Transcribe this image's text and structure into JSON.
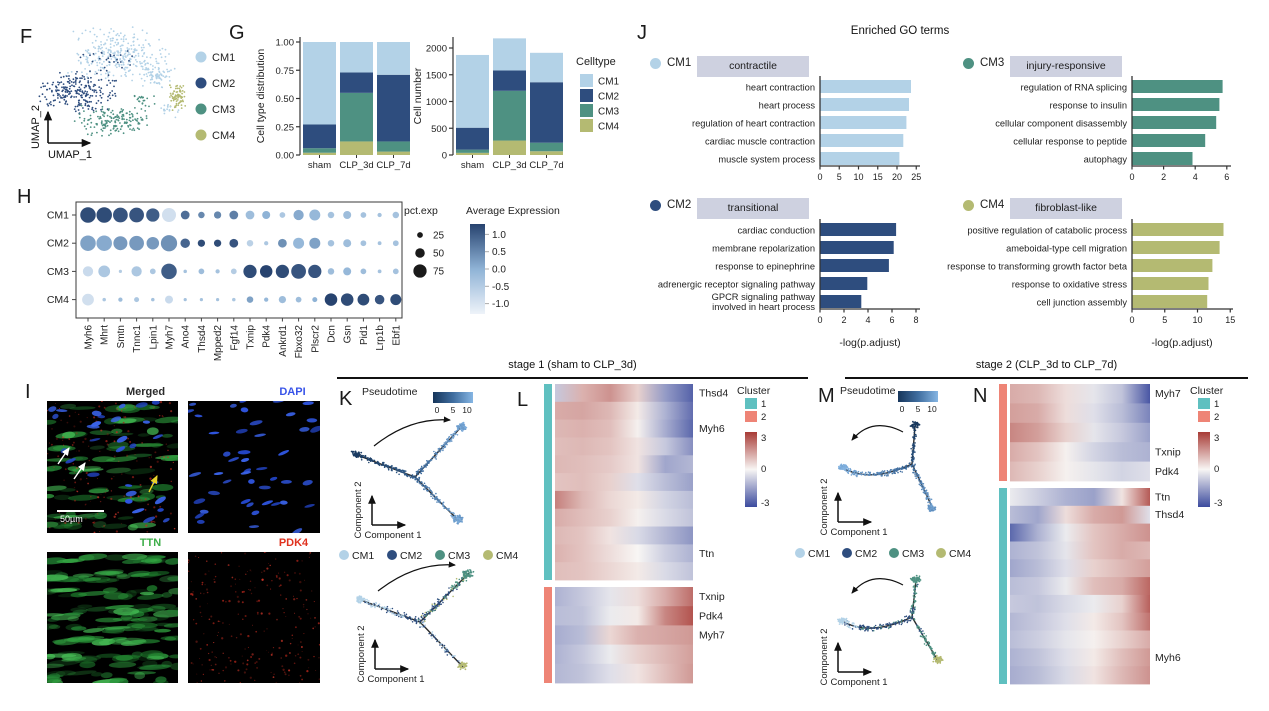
{
  "panels": {
    "F": {
      "label": "F",
      "xlabel": "UMAP_1",
      "ylabel": "UMAP_2",
      "legend": [
        "CM1",
        "CM2",
        "CM3",
        "CM4"
      ]
    },
    "G": {
      "label": "G"
    },
    "H": {
      "label": "H"
    },
    "I": {
      "label": "I",
      "images": [
        "Merged",
        "DAPI",
        "TTN",
        "PDK4"
      ],
      "scale_bar": "50µm"
    },
    "J": {
      "label": "J",
      "title": "Enriched GO terms",
      "xlabel": "-log(p.adjust)"
    },
    "K": {
      "label": "K",
      "pseudotime_label": "Pseudotime",
      "pseudotime_ticks": [
        0,
        5,
        10
      ],
      "xlabel": "Component 1",
      "ylabel": "Component 2",
      "legend": [
        "CM1",
        "CM2",
        "CM3",
        "CM4"
      ]
    },
    "L": {
      "label": "L",
      "cluster_legend_title": "Cluster"
    },
    "M": {
      "label": "M",
      "pseudotime_label": "Pseudotime",
      "pseudotime_ticks": [
        0,
        5,
        10
      ],
      "xlabel": "Component 1",
      "ylabel": "Component 2",
      "legend": [
        "CM1",
        "CM2",
        "CM3",
        "CM4"
      ]
    },
    "N": {
      "label": "N",
      "cluster_legend_title": "Cluster"
    }
  },
  "stage_headers": [
    "stage 1 (sham to CLP_3d)",
    "stage 2 (CLP_3d to CLP_7d)"
  ],
  "colors": {
    "cm1": "#b3d2e7",
    "cm2": "#2e4d7e",
    "cm3": "#4e9182",
    "cm4": "#b4ba72",
    "cluster1": "#5fc0c0",
    "cluster2": "#ee8476",
    "heat_pos": "#a83b36",
    "heat_zero": "#f8f6f4",
    "heat_neg": "#3c4b9e",
    "pseudotime_dark": "#16355a",
    "pseudotime_mid": "#3f6d9f",
    "pseudotime_light": "#85b5e3",
    "go_chip_bg": "#ced1e0",
    "dapi_blue": "#3753e8",
    "ttn_green": "#3fae4a",
    "pdk4_red": "#e0321f",
    "merged_gray": "#2b2b2b"
  },
  "chart_data": [
    {
      "id": "celltype-distribution",
      "type": "bar",
      "stacked": true,
      "ylabel": "Cell type distribution",
      "categories": [
        "sham",
        "CLP_3d",
        "CLP_7d"
      ],
      "series": [
        {
          "name": "CM4",
          "values": [
            0.02,
            0.12,
            0.03
          ]
        },
        {
          "name": "CM3",
          "values": [
            0.04,
            0.43,
            0.09
          ]
        },
        {
          "name": "CM2",
          "values": [
            0.21,
            0.18,
            0.59
          ]
        },
        {
          "name": "CM1",
          "values": [
            0.73,
            0.27,
            0.29
          ]
        }
      ],
      "ylim": [
        0,
        1
      ],
      "yticks": [
        0,
        0.25,
        0.5,
        0.75,
        1
      ]
    },
    {
      "id": "cell-number",
      "type": "bar",
      "stacked": true,
      "ylabel": "Cell number",
      "legend_title": "Celltype",
      "legend": [
        "CM1",
        "CM2",
        "CM3",
        "CM4"
      ],
      "categories": [
        "sham",
        "CLP_3d",
        "CLP_7d"
      ],
      "series": [
        {
          "name": "CM4",
          "values": [
            40,
            270,
            70
          ]
        },
        {
          "name": "CM3",
          "values": [
            60,
            930,
            160
          ]
        },
        {
          "name": "CM2",
          "values": [
            410,
            380,
            1130
          ]
        },
        {
          "name": "CM1",
          "values": [
            1360,
            600,
            550
          ]
        }
      ],
      "ylim": [
        0,
        2200
      ],
      "yticks": [
        0,
        500,
        1000,
        1500,
        2000
      ]
    },
    {
      "id": "marker-dotplot",
      "type": "heatmap",
      "subtype": "dotplot",
      "genes": [
        "Myh6",
        "Mhrt",
        "Smtn",
        "Tnnc1",
        "Lpin1",
        "Myh7",
        "Ano4",
        "Thsd4",
        "Mpped2",
        "Fgf14",
        "Txnip",
        "Pdk4",
        "Ankrd1",
        "Fbxo32",
        "Plscr2",
        "Dcn",
        "Gsn",
        "Pid1",
        "Lrp1b",
        "Ebf1"
      ],
      "rows": [
        "CM1",
        "CM2",
        "CM3",
        "CM4"
      ],
      "pct": [
        [
          90,
          90,
          85,
          85,
          75,
          80,
          45,
          30,
          35,
          45,
          45,
          40,
          25,
          55,
          60,
          30,
          40,
          25,
          15,
          30
        ],
        [
          90,
          90,
          80,
          85,
          70,
          95,
          50,
          35,
          35,
          45,
          30,
          15,
          45,
          60,
          60,
          30,
          40,
          25,
          12,
          25
        ],
        [
          55,
          65,
          8,
          55,
          25,
          90,
          10,
          25,
          15,
          25,
          75,
          70,
          75,
          85,
          75,
          30,
          40,
          25,
          12,
          25
        ],
        [
          65,
          10,
          15,
          20,
          10,
          40,
          8,
          8,
          8,
          10,
          30,
          15,
          35,
          25,
          20,
          70,
          70,
          65,
          50,
          60
        ]
      ],
      "avg_exp": [
        [
          1.2,
          1.2,
          1.1,
          1.1,
          1.0,
          -0.9,
          0.8,
          0.5,
          0.5,
          0.6,
          -0.2,
          0.0,
          -0.4,
          0.1,
          -0.1,
          -0.3,
          -0.2,
          -0.3,
          -0.3,
          -0.3
        ],
        [
          0.2,
          0.1,
          0.3,
          0.3,
          0.3,
          0.4,
          0.9,
          1.2,
          1.2,
          1.1,
          -0.6,
          -0.4,
          0.4,
          -0.1,
          0.2,
          -0.3,
          -0.2,
          -0.3,
          -0.3,
          -0.3
        ],
        [
          -0.8,
          -0.4,
          -0.5,
          -0.4,
          -0.4,
          1.0,
          -0.3,
          -0.2,
          -0.3,
          -0.5,
          1.2,
          1.3,
          1.2,
          1.1,
          1.1,
          -0.2,
          -0.1,
          -0.2,
          -0.3,
          -0.3
        ],
        [
          -0.9,
          -0.4,
          -0.2,
          -0.4,
          -0.3,
          -0.8,
          -0.3,
          -0.3,
          -0.3,
          -0.4,
          0.2,
          -0.1,
          -0.2,
          -0.2,
          0.0,
          1.3,
          1.2,
          1.2,
          1.1,
          1.2
        ]
      ],
      "size_legend": {
        "title": "pct.exp",
        "values": [
          25,
          50,
          75
        ]
      },
      "color_legend": {
        "title": "Average Expression",
        "ticks": [
          1.0,
          0.5,
          0.0,
          -0.5,
          -1.0
        ],
        "range": [
          -1.3,
          1.3
        ]
      }
    },
    {
      "id": "go-cm1",
      "type": "bar",
      "orientation": "horizontal",
      "cluster": "CM1",
      "tag": "contractile",
      "categories": [
        "heart contraction",
        "heart process",
        "regulation of heart contraction",
        "cardiac muscle contraction",
        "muscle system process"
      ],
      "values": [
        23.5,
        23,
        22.3,
        21.5,
        20.5
      ],
      "xticks": [
        0,
        5,
        10,
        15,
        20,
        25
      ],
      "xlabel": "-log(p.adjust)"
    },
    {
      "id": "go-cm2",
      "type": "bar",
      "orientation": "horizontal",
      "cluster": "CM2",
      "tag": "transitional",
      "categories": [
        "cardiac conduction",
        "membrane repolarization",
        "response to epinephrine",
        "adrenergic receptor signaling pathway",
        "GPCR signaling pathway\ninvolved in heart process"
      ],
      "values": [
        6.3,
        6.1,
        5.7,
        3.9,
        3.4
      ],
      "xticks": [
        0,
        2,
        4,
        6,
        8
      ],
      "xlabel": "-log(p.adjust)"
    },
    {
      "id": "go-cm3",
      "type": "bar",
      "orientation": "horizontal",
      "cluster": "CM3",
      "tag": "injury-responsive",
      "categories": [
        "regulation of RNA splicing",
        "response to insulin",
        "cellular component disassembly",
        "cellular response to peptide",
        "autophagy"
      ],
      "values": [
        5.7,
        5.5,
        5.3,
        4.6,
        3.8
      ],
      "xticks": [
        0,
        2,
        4,
        6
      ],
      "xlabel": "-log(p.adjust)"
    },
    {
      "id": "go-cm4",
      "type": "bar",
      "orientation": "horizontal",
      "cluster": "CM4",
      "tag": "fibroblast-like",
      "categories": [
        "positive regulation of catabolic process",
        "ameboidal-type cell migration",
        "response to transforming growth factor beta",
        "response to oxidative stress",
        "cell junction assembly"
      ],
      "values": [
        13.9,
        13.3,
        12.2,
        11.6,
        11.4
      ],
      "xticks": [
        0,
        5,
        10,
        15
      ],
      "xlabel": "-log(p.adjust)"
    },
    {
      "id": "stage1-gene-heatmap",
      "type": "heatmap",
      "value_range": [
        -3,
        3
      ],
      "colorbar_ticks": [
        3,
        0,
        -3
      ],
      "cluster_legend": {
        "title": "Cluster",
        "ids": [
          1,
          2
        ]
      },
      "sections": [
        {
          "cluster": 1,
          "gene_labels": {
            "0": "Thsd4",
            "2": "Myh6",
            "9": "Ttn"
          },
          "rows": [
            [
              -0.8,
              1.1,
              1.6,
              0.6,
              -1.6,
              -2.6
            ],
            [
              1.2,
              1.3,
              1.0,
              0.2,
              -1.2,
              -2.4
            ],
            [
              1.0,
              1.1,
              0.9,
              0.1,
              -1.3,
              -2.5
            ],
            [
              0.9,
              1.0,
              0.8,
              0.3,
              -0.8,
              -1.8
            ],
            [
              1.0,
              0.9,
              0.7,
              0.3,
              -1.4,
              -1.1
            ],
            [
              0.8,
              0.9,
              0.6,
              -0.4,
              -1.0,
              -1.5
            ],
            [
              1.9,
              1.0,
              0.5,
              0.2,
              -0.6,
              -1.0
            ],
            [
              1.2,
              0.9,
              0.6,
              0.1,
              -0.5,
              -0.9
            ],
            [
              1.0,
              0.8,
              0.3,
              -0.5,
              -1.1,
              -1.7
            ],
            [
              1.1,
              0.8,
              0.4,
              0.0,
              -0.7,
              -1.2
            ],
            [
              0.9,
              0.8,
              0.5,
              0.2,
              -0.5,
              -0.9
            ]
          ]
        },
        {
          "cluster": 2,
          "gene_labels": {
            "0": "Txnip",
            "1": "Pdk4",
            "2": "Myh7"
          },
          "rows": [
            [
              -1.2,
              -0.8,
              -0.3,
              0.4,
              1.2,
              2.2
            ],
            [
              -1.0,
              -0.9,
              -0.2,
              0.2,
              1.8,
              2.6
            ],
            [
              -1.3,
              -1.0,
              0.5,
              1.1,
              1.3,
              1.5
            ],
            [
              -1.2,
              -0.8,
              -0.2,
              0.6,
              1.0,
              1.4
            ],
            [
              -1.1,
              -0.9,
              -0.4,
              0.3,
              0.9,
              1.5
            ]
          ]
        }
      ]
    },
    {
      "id": "stage2-gene-heatmap",
      "type": "heatmap",
      "value_range": [
        -3,
        3
      ],
      "colorbar_ticks": [
        3,
        0,
        -3
      ],
      "cluster_legend": {
        "title": "Cluster",
        "ids": [
          1,
          2
        ]
      },
      "sections": [
        {
          "cluster": 2,
          "gene_labels": {
            "0": "Myh7",
            "3": "Txnip",
            "4": "Pdk4"
          },
          "rows": [
            [
              1.2,
              1.0,
              0.4,
              -0.3,
              -0.9,
              -2.8
            ],
            [
              1.4,
              1.2,
              0.4,
              -0.4,
              -1.0,
              -2.0
            ],
            [
              1.8,
              1.4,
              0.6,
              -0.3,
              -0.8,
              -1.5
            ],
            [
              1.2,
              0.8,
              0.1,
              -0.6,
              -1.0,
              -1.2
            ],
            [
              1.0,
              0.6,
              0.1,
              -0.3,
              -0.6,
              -0.4
            ]
          ]
        },
        {
          "cluster": 1,
          "gene_labels": {
            "0": "Ttn",
            "1": "Thsd4",
            "9": "Myh6"
          },
          "rows": [
            [
              -0.2,
              -0.7,
              -1.2,
              -1.5,
              0.3,
              2.5
            ],
            [
              -1.0,
              -1.4,
              0.4,
              1.2,
              1.5,
              -0.4
            ],
            [
              -2.5,
              -1.2,
              -0.2,
              0.8,
              1.2,
              1.6
            ],
            [
              -1.2,
              -0.9,
              -0.3,
              0.8,
              1.2,
              1.0
            ],
            [
              -1.4,
              -1.0,
              -0.4,
              0.6,
              1.0,
              1.4
            ],
            [
              -1.0,
              -0.8,
              -0.2,
              0.9,
              1.2,
              2.3
            ],
            [
              -0.8,
              -0.9,
              -0.5,
              -0.2,
              0.6,
              2.4
            ],
            [
              -1.1,
              -0.8,
              -0.4,
              0.2,
              0.8,
              2.1
            ],
            [
              -1.0,
              -0.7,
              -0.3,
              0.1,
              0.6,
              1.2
            ],
            [
              -1.2,
              -0.9,
              -0.4,
              0.2,
              0.9,
              1.5
            ],
            [
              -1.3,
              -1.0,
              -0.5,
              0.3,
              1.0,
              1.6
            ]
          ]
        }
      ]
    },
    {
      "id": "stage1-trajectory",
      "type": "scatter",
      "title": "stage 1 (sham to CLP_3d)",
      "xlabel": "Component 1",
      "ylabel": "Component 2",
      "colorbar": {
        "title": "Pseudotime",
        "ticks": [
          0,
          5,
          10
        ]
      },
      "legend": [
        "CM1",
        "CM2",
        "CM3",
        "CM4"
      ],
      "branches": [
        "root-left",
        "upper-right",
        "lower-right"
      ]
    },
    {
      "id": "stage2-trajectory",
      "type": "scatter",
      "title": "stage 2 (CLP_3d to CLP_7d)",
      "xlabel": "Component 1",
      "ylabel": "Component 2",
      "colorbar": {
        "title": "Pseudotime",
        "ticks": [
          0,
          5,
          10
        ]
      },
      "legend": [
        "CM1",
        "CM2",
        "CM3",
        "CM4"
      ],
      "branches": [
        "root-top",
        "long-left",
        "lower-right"
      ]
    }
  ]
}
